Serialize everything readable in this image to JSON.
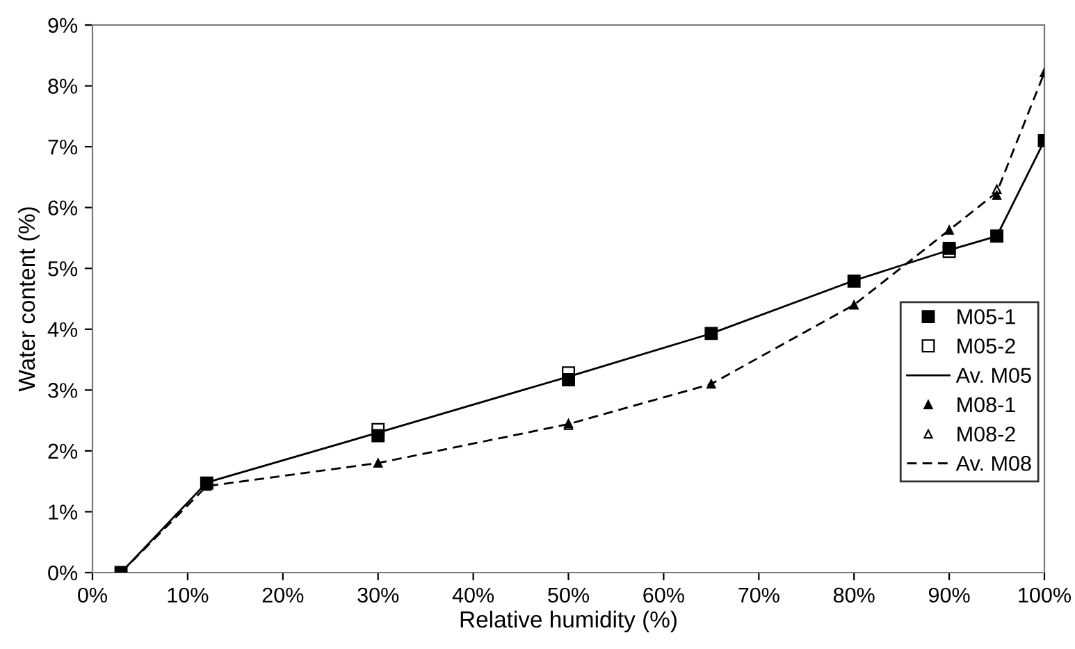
{
  "chart_data": {
    "type": "line",
    "xlabel": "Relative humidity (%)",
    "ylabel": "Water content (%)",
    "xlim": [
      0,
      100
    ],
    "ylim": [
      0,
      9
    ],
    "xticks": [
      {
        "value": 0,
        "label": "0%"
      },
      {
        "value": 10,
        "label": "10%"
      },
      {
        "value": 20,
        "label": "20%"
      },
      {
        "value": 30,
        "label": "30%"
      },
      {
        "value": 40,
        "label": "40%"
      },
      {
        "value": 50,
        "label": "50%"
      },
      {
        "value": 60,
        "label": "60%"
      },
      {
        "value": 70,
        "label": "70%"
      },
      {
        "value": 80,
        "label": "80%"
      },
      {
        "value": 90,
        "label": "90%"
      },
      {
        "value": 100,
        "label": "100%"
      }
    ],
    "yticks": [
      {
        "value": 0,
        "label": "0%"
      },
      {
        "value": 1,
        "label": "1%"
      },
      {
        "value": 2,
        "label": "2%"
      },
      {
        "value": 3,
        "label": "3%"
      },
      {
        "value": 4,
        "label": "4%"
      },
      {
        "value": 5,
        "label": "5%"
      },
      {
        "value": 6,
        "label": "6%"
      },
      {
        "value": 7,
        "label": "7%"
      },
      {
        "value": 8,
        "label": "8%"
      },
      {
        "value": 9,
        "label": "9%"
      }
    ],
    "x": [
      3,
      12,
      30,
      50,
      65,
      80,
      90,
      95,
      100
    ],
    "grid": false,
    "legend": "right",
    "series": [
      {
        "name": "M05-1",
        "type": "scatter",
        "marker": "square",
        "color": "#000000",
        "values": [
          0,
          1.47,
          2.25,
          3.17,
          3.93,
          4.79,
          5.33,
          5.53,
          7.1
        ]
      },
      {
        "name": "M05-2",
        "type": "scatter",
        "marker": "square",
        "color": "#ffffff",
        "values": [
          null,
          null,
          2.35,
          3.28,
          null,
          null,
          5.28,
          null,
          null
        ]
      },
      {
        "name": "Av. M05",
        "marker": "none",
        "line_style": "solid",
        "color": "#000000",
        "values": [
          0,
          1.48,
          2.3,
          3.22,
          3.93,
          4.8,
          5.3,
          5.53,
          7.1
        ]
      },
      {
        "name": "M08-1",
        "type": "scatter",
        "marker": "triangle",
        "color": "#000000",
        "values": [
          null,
          1.42,
          1.8,
          2.45,
          3.1,
          4.4,
          5.63,
          6.2,
          8.22
        ]
      },
      {
        "name": "M08-2",
        "type": "scatter",
        "marker": "triangle",
        "color": "#ffffff",
        "values": [
          null,
          null,
          null,
          2.42,
          null,
          null,
          null,
          6.3,
          null
        ]
      },
      {
        "name": "Av. M08",
        "marker": "none",
        "line_style": "dashed",
        "color": "#000000",
        "values": [
          0,
          1.42,
          1.8,
          2.44,
          3.1,
          4.4,
          5.63,
          6.25,
          8.22
        ]
      }
    ]
  }
}
